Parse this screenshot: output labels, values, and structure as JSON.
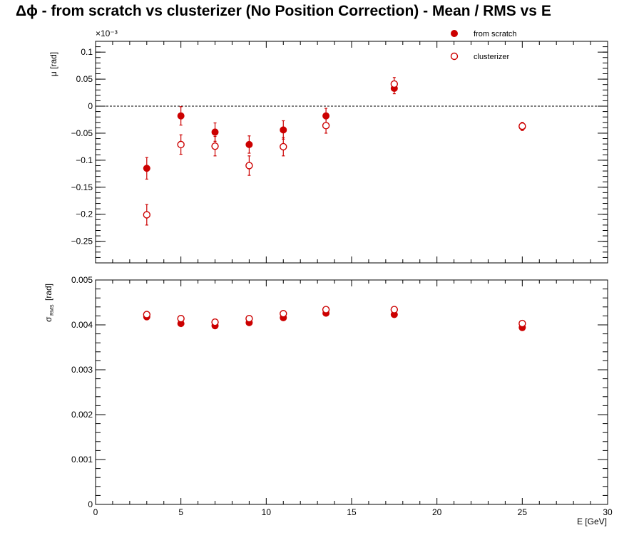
{
  "title": "Δϕ  -  from scratch vs clusterizer  (No Position Correction)  -  Mean / RMS vs E",
  "colors": {
    "series": "#cc0000",
    "axis": "#000000",
    "zero_line": "#000000"
  },
  "chart_data": [
    {
      "type": "scatter",
      "panel": "top",
      "ylabel": "μ  [rad]",
      "yexponent": "×10⁻³",
      "x": [
        3,
        5,
        7,
        9,
        11,
        13.5,
        17.5,
        25
      ],
      "xlim": [
        0,
        30
      ],
      "ylim": [
        -0.29,
        0.12
      ],
      "yticks": [
        0.1,
        0.05,
        0,
        -0.05,
        -0.1,
        -0.15,
        -0.2,
        -0.25
      ],
      "ytick_labels": [
        "0.1",
        "0.05",
        "0",
        "−0.05",
        "−0.1",
        "−0.15",
        "−0.2",
        "−0.25"
      ],
      "reference_line": 0,
      "series": [
        {
          "name": "from scratch",
          "marker": "filled-circle",
          "values": [
            -0.115,
            -0.018,
            -0.048,
            -0.071,
            -0.044,
            -0.018,
            0.033,
            -0.038
          ],
          "errors": [
            0.02,
            0.017,
            0.017,
            0.016,
            0.017,
            0.014,
            0.01,
            0.007
          ]
        },
        {
          "name": "clusterizer",
          "marker": "open-circle",
          "values": [
            -0.201,
            -0.071,
            -0.074,
            -0.11,
            -0.075,
            -0.036,
            0.041,
            -0.037
          ],
          "errors": [
            0.019,
            0.018,
            0.018,
            0.018,
            0.017,
            0.014,
            0.012,
            0.007
          ]
        }
      ]
    },
    {
      "type": "scatter",
      "panel": "bottom",
      "ylabel": "σ",
      "ylabel_sub": "RMS",
      "ylabel_unit": "[rad]",
      "xlabel": "E  [GeV]",
      "x": [
        3,
        5,
        7,
        9,
        11,
        13.5,
        17.5,
        25
      ],
      "xlim": [
        0,
        30
      ],
      "xticks": [
        0,
        5,
        10,
        15,
        20,
        25,
        30
      ],
      "xtick_labels": [
        "0",
        "5",
        "10",
        "15",
        "20",
        "25",
        "30"
      ],
      "ylim": [
        0,
        0.005
      ],
      "yticks": [
        0,
        0.001,
        0.002,
        0.003,
        0.004,
        0.005
      ],
      "ytick_labels": [
        "0",
        "0.001",
        "0.002",
        "0.003",
        "0.004",
        "0.005"
      ],
      "series": [
        {
          "name": "from scratch",
          "marker": "filled-circle",
          "values": [
            0.00418,
            0.00403,
            0.00398,
            0.00405,
            0.00416,
            0.00426,
            0.00423,
            0.00394
          ]
        },
        {
          "name": "clusterizer",
          "marker": "open-circle",
          "values": [
            0.00423,
            0.00414,
            0.00406,
            0.00414,
            0.00425,
            0.00434,
            0.00434,
            0.00403
          ]
        }
      ]
    }
  ],
  "legend": [
    {
      "label": "from scratch",
      "marker": "filled-circle"
    },
    {
      "label": "clusterizer",
      "marker": "open-circle"
    }
  ]
}
